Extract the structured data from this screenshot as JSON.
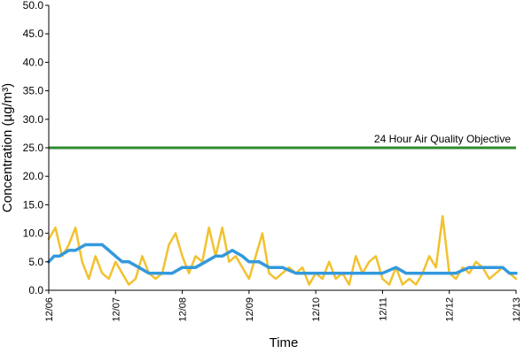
{
  "chart_data": {
    "type": "line",
    "title": "",
    "xlabel": "Time",
    "ylabel": "Concentration (µg/m³)",
    "ylim": [
      0,
      50
    ],
    "xlim": [
      "12/06",
      "12/13"
    ],
    "grid": false,
    "y_ticks": [
      "0.0",
      "5.0",
      "10.0",
      "15.0",
      "20.0",
      "25.0",
      "30.0",
      "35.0",
      "40.0",
      "45.0",
      "50.0"
    ],
    "x_ticks": [
      "12/06",
      "12/07",
      "12/08",
      "12/09",
      "12/10",
      "12/11",
      "12/12",
      "12/13"
    ],
    "objective": {
      "value": 25,
      "label": "24 Hour Air Quality Objective",
      "color": "#2e8b2e"
    },
    "series": [
      {
        "color": "#f2c12e",
        "x": [
          0,
          0.1,
          0.2,
          0.3,
          0.4,
          0.5,
          0.6,
          0.7,
          0.8,
          0.9,
          1.0,
          1.1,
          1.2,
          1.3,
          1.4,
          1.5,
          1.6,
          1.7,
          1.8,
          1.9,
          2.0,
          2.1,
          2.2,
          2.3,
          2.4,
          2.5,
          2.6,
          2.7,
          2.8,
          2.9,
          3.0,
          3.1,
          3.2,
          3.3,
          3.4,
          3.5,
          3.6,
          3.7,
          3.8,
          3.9,
          4.0,
          4.1,
          4.2,
          4.3,
          4.4,
          4.5,
          4.6,
          4.7,
          4.8,
          4.9,
          5.0,
          5.1,
          5.2,
          5.3,
          5.4,
          5.5,
          5.6,
          5.7,
          5.8,
          5.9,
          6.0,
          6.1,
          6.2,
          6.3,
          6.4,
          6.5,
          6.6,
          6.7,
          6.8,
          6.9,
          7.0
        ],
        "values": [
          9,
          11,
          6,
          8,
          11,
          5,
          2,
          6,
          3,
          2,
          5,
          3,
          1,
          2,
          6,
          3,
          2,
          3,
          8,
          10,
          6,
          3,
          6,
          5,
          11,
          6,
          11,
          5,
          6,
          4,
          2,
          6,
          10,
          3,
          2,
          3,
          4,
          3,
          4,
          1,
          3,
          2,
          5,
          2,
          3,
          1,
          6,
          3,
          5,
          6,
          2,
          1,
          4,
          1,
          2,
          1,
          3,
          6,
          4,
          13,
          3,
          2,
          4,
          3,
          5,
          4,
          2,
          3,
          4,
          3,
          2
        ]
      },
      {
        "color": "#3399dd",
        "x": [
          0,
          0.08,
          0.16,
          0.3,
          0.4,
          0.55,
          0.7,
          0.75,
          0.8,
          0.9,
          1.0,
          1.1,
          1.2,
          1.35,
          1.5,
          1.7,
          1.85,
          2.0,
          2.2,
          2.35,
          2.5,
          2.6,
          2.75,
          2.9,
          3.0,
          3.15,
          3.3,
          3.5,
          3.7,
          4.0,
          4.3,
          4.5,
          4.8,
          5.0,
          5.2,
          5.35,
          5.5,
          5.8,
          6.0,
          6.1,
          6.3,
          6.4,
          6.6,
          6.8,
          6.9,
          7.0
        ],
        "values": [
          5,
          6,
          6,
          7,
          7,
          8,
          8,
          8,
          8,
          7,
          6,
          5,
          5,
          4,
          3,
          3,
          3,
          4,
          4,
          5,
          6,
          6,
          7,
          6,
          5,
          5,
          4,
          4,
          3,
          3,
          3,
          3,
          3,
          3,
          4,
          3,
          3,
          3,
          3,
          3,
          4,
          4,
          4,
          4,
          3,
          3
        ]
      }
    ]
  }
}
